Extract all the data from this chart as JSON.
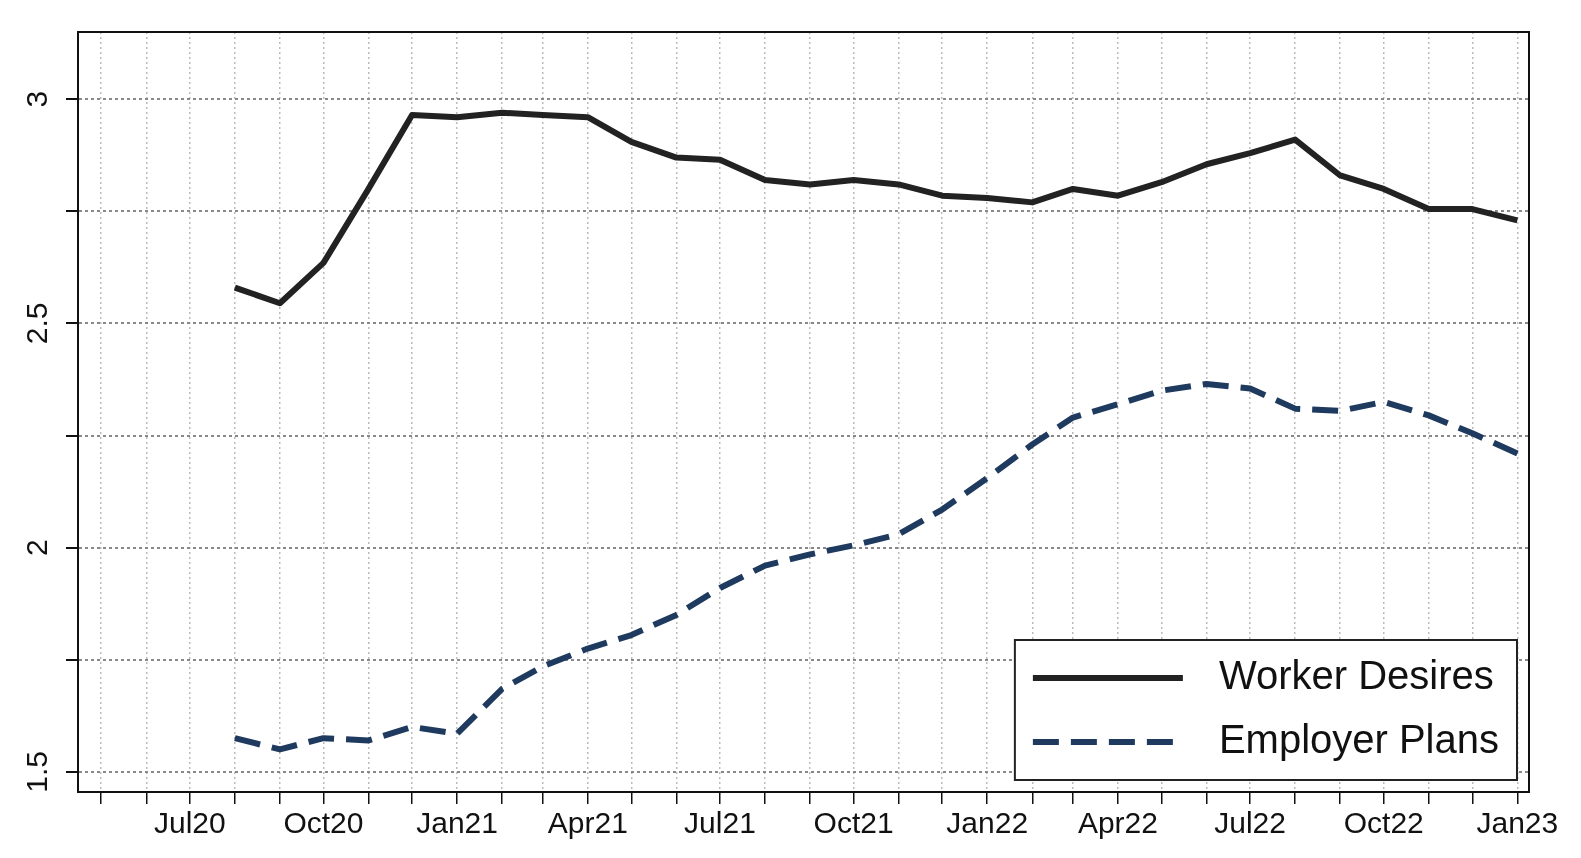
{
  "chart_data": {
    "type": "line",
    "x": [
      "2020-08",
      "2020-09",
      "2020-10",
      "2020-11",
      "2020-12",
      "2021-01",
      "2021-02",
      "2021-03",
      "2021-04",
      "2021-05",
      "2021-06",
      "2021-07",
      "2021-08",
      "2021-09",
      "2021-10",
      "2021-11",
      "2021-12",
      "2022-01",
      "2022-02",
      "2022-03",
      "2022-04",
      "2022-05",
      "2022-06",
      "2022-07",
      "2022-08",
      "2022-09",
      "2022-10",
      "2022-11",
      "2022-12",
      "2023-01"
    ],
    "series": [
      {
        "name": "Worker Desires",
        "color": "#222222",
        "line_style": "solid",
        "values": [
          2.58,
          2.545,
          2.635,
          2.8,
          2.965,
          2.96,
          2.97,
          2.965,
          2.96,
          2.905,
          2.87,
          2.865,
          2.82,
          2.81,
          2.82,
          2.81,
          2.785,
          2.78,
          2.77,
          2.8,
          2.785,
          2.815,
          2.855,
          2.88,
          2.91,
          2.83,
          2.8,
          2.755,
          2.755,
          2.73
        ]
      },
      {
        "name": "Employer Plans",
        "color": "#1f3a5f",
        "line_style": "dashed",
        "values": [
          1.575,
          1.55,
          1.575,
          1.57,
          1.6,
          1.585,
          1.685,
          1.735,
          1.775,
          1.805,
          1.85,
          1.91,
          1.96,
          1.985,
          2.005,
          2.03,
          2.085,
          2.155,
          2.23,
          2.29,
          2.32,
          2.35,
          2.365,
          2.355,
          2.31,
          2.305,
          2.325,
          2.295,
          2.255,
          2.21
        ]
      }
    ],
    "xlim": [
      "2020-04-15",
      "2023-01-09"
    ],
    "xticks": [
      {
        "value": "2020-05",
        "label": null
      },
      {
        "value": "2020-06",
        "label": null
      },
      {
        "value": "2020-07",
        "label": "Jul20"
      },
      {
        "value": "2020-08",
        "label": null
      },
      {
        "value": "2020-09",
        "label": null
      },
      {
        "value": "2020-10",
        "label": "Oct20"
      },
      {
        "value": "2020-11",
        "label": null
      },
      {
        "value": "2020-12",
        "label": null
      },
      {
        "value": "2021-01",
        "label": "Jan21"
      },
      {
        "value": "2021-02",
        "label": null
      },
      {
        "value": "2021-03",
        "label": null
      },
      {
        "value": "2021-04",
        "label": "Apr21"
      },
      {
        "value": "2021-05",
        "label": null
      },
      {
        "value": "2021-06",
        "label": null
      },
      {
        "value": "2021-07",
        "label": "Jul21"
      },
      {
        "value": "2021-08",
        "label": null
      },
      {
        "value": "2021-09",
        "label": null
      },
      {
        "value": "2021-10",
        "label": "Oct21"
      },
      {
        "value": "2021-11",
        "label": null
      },
      {
        "value": "2021-12",
        "label": null
      },
      {
        "value": "2022-01",
        "label": "Jan22"
      },
      {
        "value": "2022-02",
        "label": null
      },
      {
        "value": "2022-03",
        "label": null
      },
      {
        "value": "2022-04",
        "label": "Apr22"
      },
      {
        "value": "2022-05",
        "label": null
      },
      {
        "value": "2022-06",
        "label": null
      },
      {
        "value": "2022-07",
        "label": "Jul22"
      },
      {
        "value": "2022-08",
        "label": null
      },
      {
        "value": "2022-09",
        "label": null
      },
      {
        "value": "2022-10",
        "label": "Oct22"
      },
      {
        "value": "2022-11",
        "label": null
      },
      {
        "value": "2022-12",
        "label": null
      },
      {
        "value": "2023-01",
        "label": "Jan23"
      }
    ],
    "ylim": [
      1.455,
      3.15
    ],
    "yticks": [
      1.5,
      {
        "value": 1.75,
        "label": null
      },
      2,
      {
        "value": 2.25,
        "label": null
      },
      2.5,
      {
        "value": 2.75,
        "label": null
      },
      3
    ],
    "grid": true,
    "legend": "bottom right",
    "marker": "none"
  }
}
